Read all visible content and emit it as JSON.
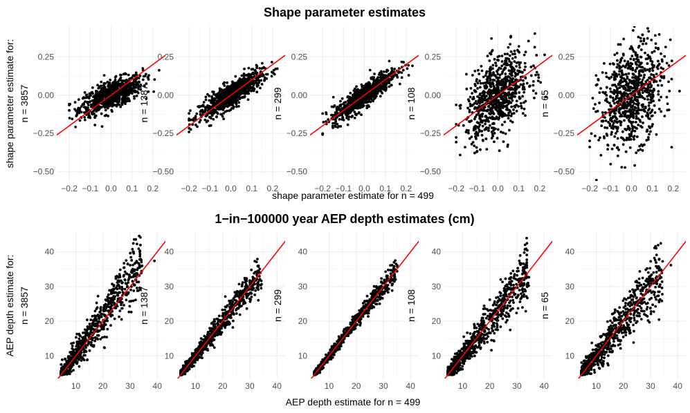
{
  "chart_data": [
    {
      "type": "scatter",
      "title": "Shape parameter estimates",
      "xlabel": "shape parameter estimate for n = 499",
      "ylabel": "shape parameter estimate for:",
      "xlim": [
        -0.26,
        0.26
      ],
      "ylim": [
        -0.56,
        0.45
      ],
      "xticks": [
        -0.2,
        -0.1,
        0.0,
        0.1,
        0.2
      ],
      "xtick_labels": [
        "−0.2",
        "−0.1",
        "0.0",
        "0.1",
        "0.2"
      ],
      "yticks": [
        -0.5,
        -0.25,
        0.0,
        0.25
      ],
      "ytick_labels": [
        "−0.50",
        "−0.25",
        "0.00",
        "0.25"
      ],
      "reference_line": {
        "slope": 1,
        "intercept": 0,
        "color": "#ff0000"
      },
      "x_center": 0.0,
      "panels": [
        {
          "label": "n = 3857",
          "points": 800,
          "slope": 0.55,
          "spread": 0.045
        },
        {
          "label": "n = 1387",
          "points": 800,
          "slope": 0.85,
          "spread": 0.04
        },
        {
          "label": "n = 299",
          "points": 800,
          "slope": 1.0,
          "spread": 0.038
        },
        {
          "label": "n = 108",
          "points": 800,
          "slope": 0.85,
          "spread": 0.12
        },
        {
          "label": "n = 65",
          "points": 800,
          "slope": 0.75,
          "spread": 0.16
        }
      ]
    },
    {
      "type": "scatter",
      "title": "1−in−100000 year AEP depth estimates (cm)",
      "xlabel": "AEP depth estimate for n = 499",
      "ylabel": "AEP depth estimate for:",
      "xlim": [
        3,
        43
      ],
      "ylim": [
        3.5,
        45.5
      ],
      "xticks": [
        10,
        20,
        30,
        40
      ],
      "xtick_labels": [
        "10",
        "20",
        "30",
        "40"
      ],
      "yticks": [
        10,
        20,
        30,
        40
      ],
      "ytick_labels": [
        "10",
        "20",
        "30",
        "40"
      ],
      "reference_line": {
        "slope": 1,
        "intercept": 0,
        "color": "#ff0000"
      },
      "x_center": 17,
      "panels": [
        {
          "label": "n = 3857",
          "points": 800,
          "slope": 1.12,
          "spread": 2.4
        },
        {
          "label": "n = 1387",
          "points": 800,
          "slope": 1.0,
          "spread": 1.4
        },
        {
          "label": "n = 299",
          "points": 800,
          "slope": 1.0,
          "spread": 0.9
        },
        {
          "label": "n = 108",
          "points": 800,
          "slope": 1.0,
          "spread": 2.2
        },
        {
          "label": "n = 65",
          "points": 800,
          "slope": 1.0,
          "spread": 2.5
        }
      ]
    }
  ]
}
